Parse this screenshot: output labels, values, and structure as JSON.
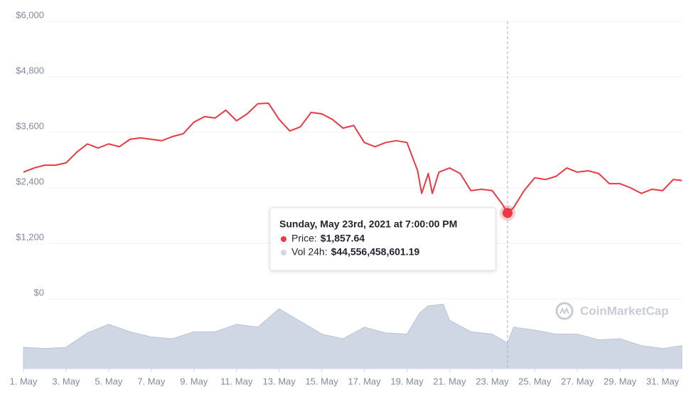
{
  "chart_data": {
    "type": "line",
    "xlim": [
      1,
      31.93
    ],
    "xticks": [
      {
        "value": 1,
        "label": "1. May"
      },
      {
        "value": 3,
        "label": "3. May"
      },
      {
        "value": 5,
        "label": "5. May"
      },
      {
        "value": 7,
        "label": "7. May"
      },
      {
        "value": 9,
        "label": "9. May"
      },
      {
        "value": 11,
        "label": "11. May"
      },
      {
        "value": 13,
        "label": "13. May"
      },
      {
        "value": 15,
        "label": "15. May"
      },
      {
        "value": 17,
        "label": "17. May"
      },
      {
        "value": 19,
        "label": "19. May"
      },
      {
        "value": 21,
        "label": "21. May"
      },
      {
        "value": 23,
        "label": "23. May"
      },
      {
        "value": 25,
        "label": "25. May"
      },
      {
        "value": 27,
        "label": "27. May"
      },
      {
        "value": 29,
        "label": "29. May"
      },
      {
        "value": 31,
        "label": "31. May"
      }
    ],
    "ylim": [
      0,
      6000
    ],
    "yticks": [
      {
        "value": 0,
        "label": "$0"
      },
      {
        "value": 1200,
        "label": "$1,200"
      },
      {
        "value": 2400,
        "label": "$2,400"
      },
      {
        "value": 3600,
        "label": "$3,600"
      },
      {
        "value": 4800,
        "label": "$4,800"
      },
      {
        "value": 6000,
        "label": "$6,000"
      }
    ],
    "y2lim": [
      0,
      115000000000
    ],
    "grid": true,
    "series": [
      {
        "color": "#ea3943",
        "x": [
          1,
          1.5,
          2,
          2.5,
          3,
          3.5,
          4,
          4.5,
          5,
          5.5,
          6,
          6.5,
          7,
          7.5,
          8,
          8.5,
          9,
          9.5,
          10,
          10.5,
          11,
          11.5,
          12,
          12.5,
          13,
          13.5,
          14,
          14.5,
          15,
          15.5,
          16,
          16.5,
          17,
          17.5,
          18,
          18.5,
          19,
          19.5,
          19.69,
          20,
          20.19,
          20.5,
          21,
          21.5,
          22,
          22.5,
          23,
          23.5,
          23.72,
          24,
          24.5,
          25,
          25.5,
          26,
          26.5,
          27,
          27.5,
          28,
          28.5,
          29,
          29.5,
          30,
          30.5,
          31,
          31.5,
          31.9
        ],
        "values": [
          2740,
          2830,
          2890,
          2890,
          2940,
          3170,
          3350,
          3260,
          3350,
          3290,
          3450,
          3480,
          3450,
          3420,
          3510,
          3570,
          3820,
          3940,
          3910,
          4080,
          3850,
          4000,
          4220,
          4230,
          3880,
          3630,
          3720,
          4030,
          4000,
          3880,
          3690,
          3750,
          3380,
          3290,
          3380,
          3420,
          3380,
          2770,
          2280,
          2710,
          2280,
          2740,
          2830,
          2710,
          2340,
          2370,
          2340,
          2030,
          1857.64,
          1970,
          2340,
          2620,
          2580,
          2650,
          2830,
          2740,
          2770,
          2710,
          2490,
          2490,
          2400,
          2280,
          2370,
          2340,
          2580,
          2560
        ]
      },
      {
        "color": "#cfd6e4",
        "axis": "y2",
        "x": [
          1,
          2,
          3,
          4,
          5,
          6,
          7,
          8,
          9,
          10,
          11,
          12,
          13,
          14,
          15,
          16,
          17,
          18,
          19,
          19.6,
          20,
          20.7,
          21,
          22,
          23,
          23.72,
          24,
          25,
          26,
          27,
          28,
          29,
          30,
          31,
          31.9
        ],
        "values": [
          37000000000,
          35000000000,
          37000000000,
          62000000000,
          77000000000,
          64000000000,
          55000000000,
          52000000000,
          64000000000,
          64000000000,
          77000000000,
          72000000000,
          104000000000,
          82000000000,
          60000000000,
          52000000000,
          72000000000,
          62000000000,
          60000000000,
          97000000000,
          109000000000,
          112000000000,
          84000000000,
          64000000000,
          60000000000,
          44556458601.19,
          72000000000,
          67000000000,
          60000000000,
          60000000000,
          50000000000,
          52000000000,
          40000000000,
          35000000000,
          40000000000
        ]
      }
    ],
    "tooltip": {
      "title": "Sunday, May 23rd, 2021 at 7:00:00 PM",
      "price_label": "Price:",
      "price_value": "$1,857.64",
      "volume_label": "Vol 24h:",
      "volume_value": "$44,556,458,601.19"
    },
    "watermark": "CoinMarketCap"
  }
}
